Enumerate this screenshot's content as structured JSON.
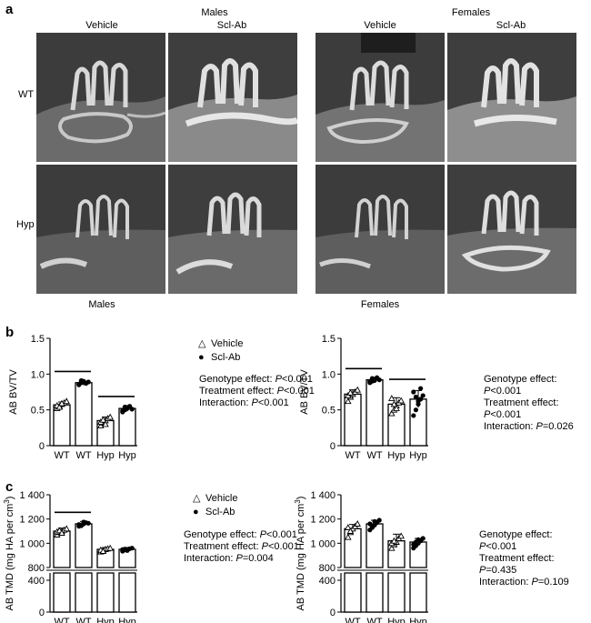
{
  "panel_a": {
    "letter": "a",
    "groups": [
      {
        "title": "Males",
        "columns": [
          "Vehicle",
          "Scl-Ab"
        ],
        "footer": "Males"
      },
      {
        "title": "Females",
        "columns": [
          "Vehicle",
          "Scl-Ab"
        ],
        "footer": "Females"
      }
    ],
    "rows": [
      "WT",
      "Hyp"
    ]
  },
  "panel_b": {
    "letter": "b"
  },
  "panel_c": {
    "letter": "c"
  },
  "legend": {
    "vehicle": "Vehicle",
    "sclab": "Scl-Ab"
  },
  "stats": {
    "b_left": {
      "geno": "Genotype effect: ",
      "geno_p": "P",
      "geno_v": "<0.001",
      "treat": "Treatment effect: ",
      "treat_p": "P",
      "treat_v": "<0.001",
      "inter": "Interaction: ",
      "inter_p": "P",
      "inter_v": "<0.001"
    },
    "b_right": {
      "geno": "Genotype effect: ",
      "geno_p": "P",
      "geno_v": "<0.001",
      "treat": "Treatment effect: ",
      "treat_p": "P",
      "treat_v": "<0.001",
      "inter": "Interaction: ",
      "inter_p": "P",
      "inter_v": "=0.026"
    },
    "c_left": {
      "geno": "Genotype effect: ",
      "geno_p": "P",
      "geno_v": "<0.001",
      "treat": "Treatment effect: ",
      "treat_p": "P",
      "treat_v": "<0.001",
      "inter": "Interaction: ",
      "inter_p": "P",
      "inter_v": "=0.004"
    },
    "c_right": {
      "geno": "Genotype effect: ",
      "geno_p": "P",
      "geno_v": "<0.001",
      "treat": "Treatment effect: ",
      "treat_p": "P",
      "treat_v": "=0.435",
      "inter": "Interaction: ",
      "inter_p": "P",
      "inter_v": "=0.109"
    }
  },
  "chart_data": [
    {
      "id": "b-males",
      "type": "bar",
      "ylabel": "AB BV/TV",
      "categories": [
        "WT",
        "WT",
        "Hyp",
        "Hyp"
      ],
      "treatment": [
        "vehicle",
        "sclab",
        "vehicle",
        "sclab"
      ],
      "values": [
        0.57,
        0.88,
        0.35,
        0.52
      ],
      "errors": [
        0.04,
        0.02,
        0.05,
        0.04
      ],
      "ylim": [
        0,
        1.5
      ],
      "yticks": [
        "0",
        "0.5",
        "1.0",
        "1.5"
      ],
      "points": [
        [
          0.52,
          0.55,
          0.58,
          0.6,
          0.62,
          0.56,
          0.54,
          0.59
        ],
        [
          0.86,
          0.88,
          0.9,
          0.87,
          0.89,
          0.85,
          0.91,
          0.88
        ],
        [
          0.28,
          0.32,
          0.35,
          0.38,
          0.4,
          0.33,
          0.36,
          0.3
        ],
        [
          0.47,
          0.5,
          0.53,
          0.55,
          0.51,
          0.49,
          0.54,
          0.52
        ]
      ],
      "sig_bars": [
        [
          0,
          1
        ],
        [
          2,
          3
        ]
      ]
    },
    {
      "id": "b-females",
      "type": "bar",
      "ylabel": "AB BV/TV",
      "categories": [
        "WT",
        "WT",
        "Hyp",
        "Hyp"
      ],
      "treatment": [
        "vehicle",
        "sclab",
        "vehicle",
        "sclab"
      ],
      "values": [
        0.72,
        0.92,
        0.58,
        0.65
      ],
      "errors": [
        0.06,
        0.03,
        0.09,
        0.12
      ],
      "ylim": [
        0,
        1.5
      ],
      "yticks": [
        "0",
        "0.5",
        "1.0",
        "1.5"
      ],
      "points": [
        [
          0.62,
          0.68,
          0.72,
          0.75,
          0.78,
          0.7,
          0.74
        ],
        [
          0.88,
          0.9,
          0.93,
          0.95,
          0.92,
          0.9,
          0.94,
          0.91
        ],
        [
          0.45,
          0.5,
          0.56,
          0.6,
          0.63,
          0.66,
          0.58,
          0.52
        ],
        [
          0.42,
          0.5,
          0.58,
          0.65,
          0.7,
          0.75,
          0.68,
          0.62,
          0.8
        ]
      ],
      "sig_bars": [
        [
          0,
          1
        ],
        [
          2,
          3
        ]
      ]
    },
    {
      "id": "c-males",
      "type": "bar",
      "ylabel": "AB TMD (mg HA per cm³)",
      "categories": [
        "WT",
        "WT",
        "Hyp",
        "Hyp"
      ],
      "treatment": [
        "vehicle",
        "sclab",
        "vehicle",
        "sclab"
      ],
      "values": [
        1100,
        1160,
        950,
        950
      ],
      "errors": [
        25,
        20,
        15,
        15
      ],
      "ylim": [
        0,
        1400
      ],
      "yticks": [
        "0",
        "400",
        "800",
        "1 000",
        "1 200",
        "1 400"
      ],
      "axis_break": [
        400,
        800
      ],
      "points": [
        [
          1070,
          1090,
          1100,
          1110,
          1120,
          1095,
          1105,
          1085
        ],
        [
          1140,
          1150,
          1160,
          1170,
          1165,
          1155,
          1145,
          1175
        ],
        [
          930,
          940,
          950,
          955,
          960,
          945,
          935
        ],
        [
          935,
          945,
          950,
          955,
          960,
          948,
          952,
          940
        ]
      ],
      "sig_bars": [
        [
          0,
          1
        ]
      ]
    },
    {
      "id": "c-females",
      "type": "bar",
      "ylabel": "AB TMD (mg HA per cm³)",
      "categories": [
        "WT",
        "WT",
        "Hyp",
        "Hyp"
      ],
      "treatment": [
        "vehicle",
        "sclab",
        "vehicle",
        "sclab"
      ],
      "values": [
        1120,
        1160,
        1020,
        1010
      ],
      "errors": [
        35,
        30,
        55,
        30
      ],
      "ylim": [
        0,
        1400
      ],
      "yticks": [
        "0",
        "400",
        "800",
        "1 000",
        "1 200",
        "1 400"
      ],
      "axis_break": [
        400,
        800
      ],
      "points": [
        [
          1050,
          1090,
          1120,
          1140,
          1160,
          1130,
          1100
        ],
        [
          1110,
          1130,
          1150,
          1170,
          1190,
          1160,
          1140,
          1180
        ],
        [
          960,
          990,
          1010,
          1040,
          1060,
          1000,
          1020
        ],
        [
          960,
          980,
          1000,
          1020,
          1040,
          990,
          1010,
          1030
        ]
      ],
      "sig_bars": []
    }
  ]
}
